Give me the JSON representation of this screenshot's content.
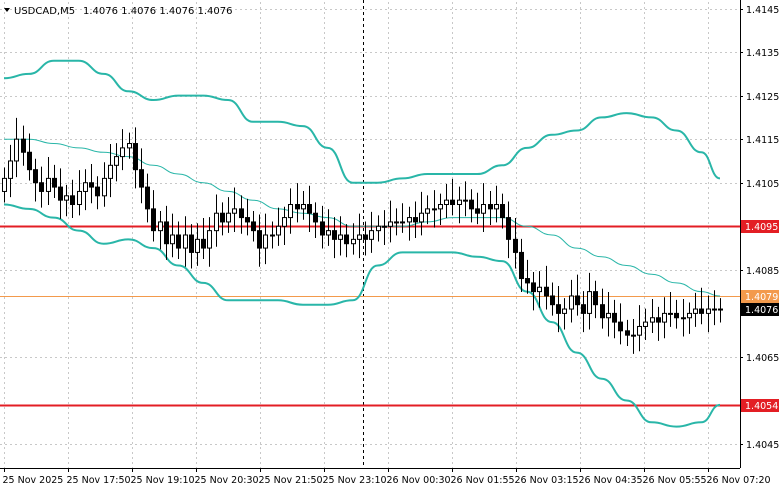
{
  "header": {
    "symbol": "USDCAD,M5",
    "ohlc": "1.4076 1.4076 1.4076 1.4076"
  },
  "chart_data": {
    "type": "candlestick",
    "symbol": "USDCAD",
    "timeframe": "M5",
    "y_range": [
      1.40395,
      1.41465
    ],
    "y_ticks": [
      "1.4145",
      "1.4135",
      "1.4125",
      "1.4115",
      "1.4105",
      "1.4095",
      "1.4085",
      "1.4079",
      "1.4076",
      "1.4065",
      "1.4054",
      "1.4045"
    ],
    "x_ticks": [
      "25 Nov 2025",
      "25 Nov 17:50",
      "25 Nov 19:10",
      "25 Nov 20:30",
      "25 Nov 21:50",
      "25 Nov 23:10",
      "26 Nov 00:30",
      "26 Nov 01:55",
      "26 Nov 03:15",
      "26 Nov 04:35",
      "26 Nov 05:55",
      "26 Nov 07:20"
    ],
    "session_separator": "25 Nov 23:10",
    "levels": [
      {
        "name": "resistance",
        "value": 1.4095,
        "label": "1.4095",
        "color": "#e31e24"
      },
      {
        "name": "orange-line",
        "value": 1.4079,
        "label": "1.4079",
        "color": "#f39a4c"
      },
      {
        "name": "current-price",
        "value": 1.4076,
        "label": "1.4076",
        "color": "#000000"
      },
      {
        "name": "support",
        "value": 1.4054,
        "label": "1.4054",
        "color": "#e31e24"
      }
    ],
    "bollinger": {
      "upper": [
        [
          0,
          1.4129
        ],
        [
          4,
          1.413
        ],
        [
          8,
          1.4133
        ],
        [
          12,
          1.4133
        ],
        [
          16,
          1.413
        ],
        [
          20,
          1.4126
        ],
        [
          24,
          1.4124
        ],
        [
          28,
          1.4125
        ],
        [
          32,
          1.4125
        ],
        [
          36,
          1.4124
        ],
        [
          40,
          1.4119
        ],
        [
          44,
          1.4119
        ],
        [
          48,
          1.4118
        ],
        [
          52,
          1.4113
        ],
        [
          56,
          1.4105
        ],
        [
          60,
          1.4105
        ],
        [
          64,
          1.4106
        ],
        [
          68,
          1.4107
        ],
        [
          72,
          1.4107
        ],
        [
          76,
          1.4107
        ],
        [
          80,
          1.4109
        ],
        [
          84,
          1.4113
        ],
        [
          88,
          1.4116
        ],
        [
          92,
          1.4117
        ],
        [
          96,
          1.412
        ],
        [
          100,
          1.4121
        ],
        [
          104,
          1.412
        ],
        [
          108,
          1.4117
        ],
        [
          112,
          1.4112
        ],
        [
          115,
          1.4106
        ]
      ],
      "middle": [
        [
          0,
          1.4115
        ],
        [
          4,
          1.4115
        ],
        [
          8,
          1.4114
        ],
        [
          12,
          1.4113
        ],
        [
          16,
          1.4112
        ],
        [
          20,
          1.4111
        ],
        [
          24,
          1.4109
        ],
        [
          28,
          1.4107
        ],
        [
          32,
          1.4105
        ],
        [
          36,
          1.4103
        ],
        [
          40,
          1.4101
        ],
        [
          44,
          1.4099
        ],
        [
          48,
          1.4098
        ],
        [
          52,
          1.4097
        ],
        [
          56,
          1.4095
        ],
        [
          60,
          1.4095
        ],
        [
          64,
          1.4095
        ],
        [
          68,
          1.4096
        ],
        [
          72,
          1.4097
        ],
        [
          76,
          1.4097
        ],
        [
          80,
          1.4097
        ],
        [
          84,
          1.4095
        ],
        [
          88,
          1.4093
        ],
        [
          92,
          1.409
        ],
        [
          96,
          1.4088
        ],
        [
          100,
          1.4086
        ],
        [
          104,
          1.4084
        ],
        [
          108,
          1.4082
        ],
        [
          112,
          1.408
        ],
        [
          115,
          1.4079
        ]
      ],
      "lower": [
        [
          0,
          1.41
        ],
        [
          4,
          1.4099
        ],
        [
          8,
          1.4097
        ],
        [
          12,
          1.4094
        ],
        [
          16,
          1.4091
        ],
        [
          20,
          1.4092
        ],
        [
          24,
          1.409
        ],
        [
          28,
          1.4086
        ],
        [
          32,
          1.4082
        ],
        [
          36,
          1.4078
        ],
        [
          40,
          1.4078
        ],
        [
          44,
          1.4078
        ],
        [
          48,
          1.4077
        ],
        [
          52,
          1.4077
        ],
        [
          56,
          1.4078
        ],
        [
          60,
          1.4086
        ],
        [
          64,
          1.4089
        ],
        [
          68,
          1.4089
        ],
        [
          72,
          1.4089
        ],
        [
          76,
          1.4088
        ],
        [
          80,
          1.4087
        ],
        [
          84,
          1.408
        ],
        [
          88,
          1.4073
        ],
        [
          92,
          1.4066
        ],
        [
          96,
          1.406
        ],
        [
          100,
          1.4055
        ],
        [
          104,
          1.405
        ],
        [
          108,
          1.4049
        ],
        [
          112,
          1.405
        ],
        [
          115,
          1.4054
        ]
      ]
    },
    "candles_close": [
      1.4106,
      1.411,
      1.4115,
      1.4112,
      1.4108,
      1.4105,
      1.4103,
      1.4106,
      1.4104,
      1.4101,
      1.4102,
      1.41,
      1.4103,
      1.4105,
      1.4104,
      1.4102,
      1.4106,
      1.4109,
      1.4111,
      1.4113,
      1.4114,
      1.4108,
      1.4104,
      1.4099,
      1.4094,
      1.4096,
      1.4091,
      1.4093,
      1.409,
      1.4093,
      1.4089,
      1.4092,
      1.409,
      1.4094,
      1.4098,
      1.4096,
      1.4098,
      1.4099,
      1.4097,
      1.4096,
      1.4094,
      1.409,
      1.4093,
      1.4093,
      1.4095,
      1.4097,
      1.41,
      1.4099,
      1.41,
      1.4098,
      1.4096,
      1.4093,
      1.4094,
      1.4092,
      1.4093,
      1.4091,
      1.4092,
      1.4093,
      1.4092,
      1.4094,
      1.4095,
      1.4095,
      1.4096,
      1.4096,
      1.4096,
      1.4097,
      1.4096,
      1.4098,
      1.4099,
      1.4099,
      1.41,
      1.4101,
      1.41,
      1.4101,
      1.4101,
      1.4099,
      1.4098,
      1.41,
      1.4099,
      1.41,
      1.4097,
      1.4092,
      1.4089,
      1.4083,
      1.4082,
      1.408,
      1.4081,
      1.4079,
      1.4077,
      1.4075,
      1.4076,
      1.4079,
      1.4077,
      1.4075,
      1.408,
      1.4077,
      1.4074,
      1.4075,
      1.4073,
      1.4071,
      1.407,
      1.407,
      1.4072,
      1.4073,
      1.4074,
      1.4073,
      1.4075,
      1.4075,
      1.4074,
      1.4074,
      1.4075,
      1.4076,
      1.4075,
      1.4076,
      1.4076,
      1.4076
    ]
  }
}
